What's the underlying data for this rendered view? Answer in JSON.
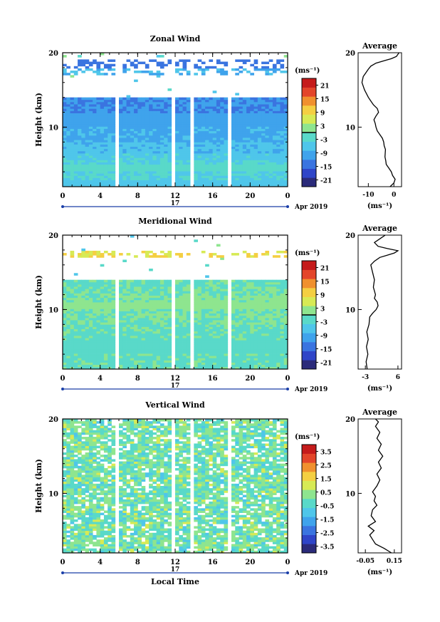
{
  "chart_data": [
    {
      "type": "heatmap",
      "title": "Zonal Wind",
      "ylabel": "Height (km)",
      "xlabel": "",
      "yticks": [
        "20",
        "10"
      ],
      "xticks": [
        "0",
        "4",
        "8",
        "12",
        "16",
        "20",
        "0"
      ],
      "day_label": "17",
      "date_label": "Apr 2019",
      "ylim": [
        2,
        20
      ],
      "xlim": [
        0,
        24
      ],
      "colorbar": {
        "unit": "(ms⁻¹)",
        "labels": [
          "21",
          "15",
          "9",
          "3",
          "-3",
          "-9",
          "-15",
          "-21"
        ],
        "zero_line": true
      },
      "profile": {
        "title": "Average",
        "yticks": [
          "20",
          "10"
        ],
        "xticks": [
          "-10",
          "0"
        ],
        "xlim": [
          -14,
          3
        ],
        "xlabel": "(ms⁻¹)",
        "points": [
          [
            -1.5,
            2
          ],
          [
            0,
            2.5
          ],
          [
            0.5,
            3
          ],
          [
            -0.5,
            3.5
          ],
          [
            -1,
            4
          ],
          [
            -2,
            4.5
          ],
          [
            -3,
            5
          ],
          [
            -3.2,
            5.5
          ],
          [
            -3.5,
            6
          ],
          [
            -3.3,
            7
          ],
          [
            -3.8,
            7.5
          ],
          [
            -4,
            8
          ],
          [
            -4.5,
            8.5
          ],
          [
            -5.5,
            9
          ],
          [
            -6.5,
            9.5
          ],
          [
            -7,
            10
          ],
          [
            -7.3,
            10.5
          ],
          [
            -7.8,
            11
          ],
          [
            -7,
            11.5
          ],
          [
            -6,
            12
          ],
          [
            -6.5,
            12.5
          ],
          [
            -8,
            13
          ],
          [
            -9,
            13.5
          ],
          [
            -10,
            14
          ],
          [
            -11.5,
            15
          ],
          [
            -12.5,
            16
          ],
          [
            -12,
            16.8
          ],
          [
            -11,
            17.3
          ],
          [
            -10,
            17.8
          ],
          [
            -9,
            18.2
          ],
          [
            -7,
            18.6
          ],
          [
            -5,
            18.8
          ],
          [
            -3,
            19
          ],
          [
            -1,
            19.2
          ],
          [
            1,
            19.5
          ],
          [
            2,
            20
          ]
        ]
      },
      "gaps": [
        [
          2.2,
          2.6
        ],
        [
          5.8,
          6.2
        ],
        [
          11.8,
          12.2
        ],
        [
          13.8,
          14.2
        ],
        [
          17.6,
          18.0
        ]
      ],
      "bands": [
        {
          "y": [
            2,
            3
          ],
          "value": -6
        },
        {
          "y": [
            3,
            4
          ],
          "value": -4
        },
        {
          "y": [
            4,
            5
          ],
          "value": -2
        },
        {
          "y": [
            5,
            5.6
          ],
          "value": -4
        },
        {
          "y": [
            5.6,
            6.5
          ],
          "value": -5
        },
        {
          "y": [
            6.5,
            8
          ],
          "value": -7
        },
        {
          "y": [
            8,
            10
          ],
          "value": -9
        },
        {
          "y": [
            10,
            12
          ],
          "value": -10
        },
        {
          "y": [
            12,
            14
          ],
          "value": -12
        },
        {
          "y": [
            17,
            18
          ],
          "value": -8
        },
        {
          "y": [
            18,
            19
          ],
          "value": -14
        }
      ]
    },
    {
      "type": "heatmap",
      "title": "Meridional Wind",
      "ylabel": "Height (km)",
      "xlabel": "",
      "yticks": [
        "20",
        "10"
      ],
      "xticks": [
        "0",
        "4",
        "8",
        "12",
        "16",
        "20",
        "0"
      ],
      "day_label": "17",
      "date_label": "Apr 2019",
      "ylim": [
        2,
        20
      ],
      "xlim": [
        0,
        24
      ],
      "colorbar": {
        "unit": "(ms⁻¹)",
        "labels": [
          "21",
          "15",
          "9",
          "3",
          "-3",
          "-9",
          "-15",
          "-21"
        ],
        "zero_line": true
      },
      "profile": {
        "title": "Average",
        "yticks": [
          "20",
          "10"
        ],
        "xticks": [
          "-3",
          "6"
        ],
        "xlim": [
          -5,
          7
        ],
        "xlabel": "(ms⁻¹)",
        "points": [
          [
            -2.5,
            2
          ],
          [
            -2.8,
            3
          ],
          [
            -2.3,
            4
          ],
          [
            -2.7,
            5
          ],
          [
            -2.2,
            6
          ],
          [
            -2.6,
            7
          ],
          [
            -2,
            8
          ],
          [
            -1.8,
            9
          ],
          [
            -1,
            9.5
          ],
          [
            0,
            10
          ],
          [
            0.5,
            10.5
          ],
          [
            0.3,
            11
          ],
          [
            -0.5,
            11.5
          ],
          [
            -0.2,
            12
          ],
          [
            -0.8,
            13
          ],
          [
            -0.5,
            14
          ],
          [
            -1,
            15
          ],
          [
            -1.5,
            16
          ],
          [
            -0.5,
            16.5
          ],
          [
            1,
            17
          ],
          [
            3,
            17.3
          ],
          [
            5,
            17.6
          ],
          [
            6,
            17.9
          ],
          [
            3,
            18.2
          ],
          [
            0.5,
            18.5
          ],
          [
            -0.5,
            19
          ],
          [
            1,
            19.5
          ],
          [
            2.5,
            20
          ]
        ]
      },
      "gaps": [
        [
          2.2,
          2.6
        ],
        [
          5.8,
          6.2
        ],
        [
          11.8,
          12.2
        ],
        [
          13.8,
          14.2
        ],
        [
          17.6,
          18.0
        ]
      ],
      "bands": [
        {
          "y": [
            2,
            4
          ],
          "value": -1
        },
        {
          "y": [
            4,
            6
          ],
          "value": -2
        },
        {
          "y": [
            6,
            8
          ],
          "value": -1
        },
        {
          "y": [
            8,
            10
          ],
          "value": 0
        },
        {
          "y": [
            10,
            11
          ],
          "value": 2
        },
        {
          "y": [
            11,
            12
          ],
          "value": 1
        },
        {
          "y": [
            12,
            13
          ],
          "value": 0
        },
        {
          "y": [
            13,
            14
          ],
          "value": -1
        },
        {
          "y": [
            17,
            18
          ],
          "value": 8
        }
      ]
    },
    {
      "type": "heatmap",
      "title": "Vertical Wind",
      "ylabel": "Height (km)",
      "xlabel": "Local Time",
      "yticks": [
        "20",
        "10"
      ],
      "xticks": [
        "0",
        "4",
        "8",
        "12",
        "16",
        "20",
        "0"
      ],
      "day_label": "17",
      "date_label": "Apr 2019",
      "ylim": [
        2,
        20
      ],
      "xlim": [
        0,
        24
      ],
      "colorbar": {
        "unit": "(ms⁻¹)",
        "labels": [
          "3.5",
          "2.5",
          "1.5",
          "0.5",
          "-0.5",
          "-1.5",
          "-2.5",
          "-3.5"
        ],
        "zero_line": false
      },
      "profile": {
        "title": "Average",
        "yticks": [
          "20",
          "10"
        ],
        "xticks": [
          "-0.05",
          "0.15"
        ],
        "xlim": [
          -0.1,
          0.2
        ],
        "xlabel": "(ms⁻¹)",
        "points": [
          [
            0.13,
            2
          ],
          [
            0.08,
            2.6
          ],
          [
            0.02,
            3.2
          ],
          [
            0.0,
            3.8
          ],
          [
            -0.02,
            4.4
          ],
          [
            0.01,
            5
          ],
          [
            -0.03,
            5.6
          ],
          [
            0.02,
            6.2
          ],
          [
            -0.01,
            7
          ],
          [
            0.0,
            7.8
          ],
          [
            0.03,
            8.4
          ],
          [
            0.01,
            9
          ],
          [
            0.02,
            9.6
          ],
          [
            0.0,
            10.2
          ],
          [
            0.03,
            11
          ],
          [
            0.05,
            11.8
          ],
          [
            0.03,
            12.6
          ],
          [
            0.06,
            13.4
          ],
          [
            0.04,
            14.2
          ],
          [
            0.07,
            15
          ],
          [
            0.04,
            15.8
          ],
          [
            0.06,
            16.6
          ],
          [
            0.03,
            17.4
          ],
          [
            0.05,
            18.2
          ],
          [
            0.02,
            19
          ],
          [
            0.04,
            19.6
          ],
          [
            0.02,
            20
          ]
        ]
      },
      "gaps": [
        [
          2.2,
          2.6
        ],
        [
          5.8,
          6.2
        ],
        [
          11.8,
          12.2
        ],
        [
          13.8,
          14.2
        ],
        [
          17.6,
          18.0
        ]
      ],
      "bands": [
        {
          "y": [
            2,
            20
          ],
          "value": 0
        }
      ]
    }
  ]
}
